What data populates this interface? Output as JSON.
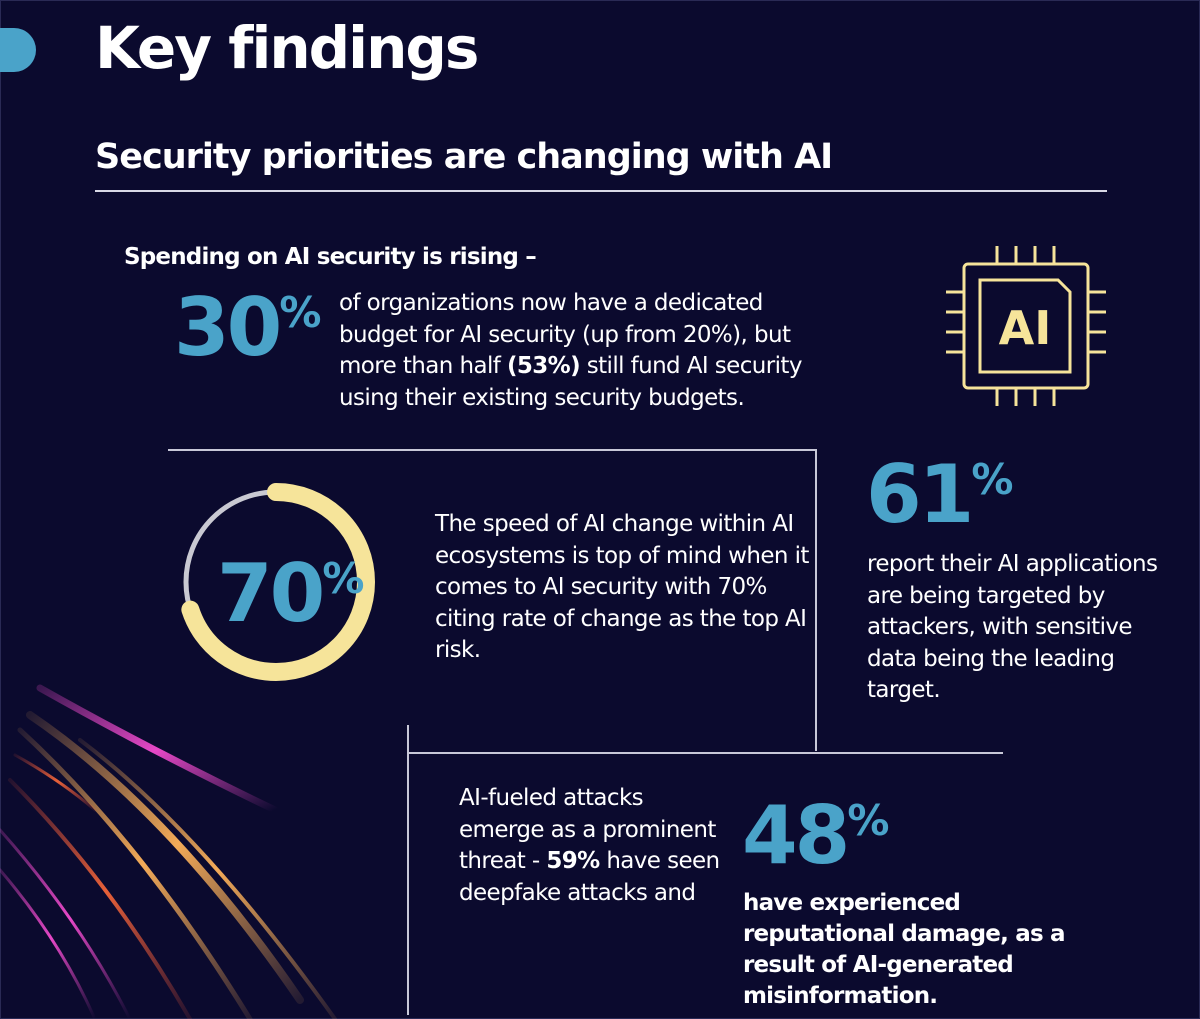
{
  "colors": {
    "background": "#0b0a2e",
    "accent_blue": "#4aa3c9",
    "accent_yellow": "#f6e49a",
    "ring_track": "#c9c9d2"
  },
  "header": {
    "title": "Key findings",
    "subtitle": "Security priorities are changing with AI"
  },
  "spending": {
    "lead": "Spending on AI security is rising –",
    "stat_number": "30",
    "stat_unit": "%",
    "text_part1": "of organizations now have a dedicated budget for AI security (up from 20%), but more than half ",
    "text_bold": "(53%)",
    "text_part2": " still fund AI security using their existing security budgets."
  },
  "ai_chip": {
    "label": "AI",
    "icon": "ai-chip-icon"
  },
  "speed": {
    "stat_number": "70",
    "stat_unit": "%",
    "ring_fraction": 0.7,
    "text": "The speed of AI change within AI ecosystems is top of mind when it comes to AI security with 70% citing rate of change as the top AI risk."
  },
  "targeted": {
    "stat_number": "61",
    "stat_unit": "%",
    "text": "report their AI applications are being targeted by attackers, with sensitive data being the leading target."
  },
  "attacks": {
    "text_part1": "AI-fueled attacks emerge as a prominent threat - ",
    "text_bold": "59%",
    "text_part2": " have seen deepfake attacks and"
  },
  "reputation": {
    "stat_number": "48",
    "stat_unit": "%",
    "text": "have experienced reputational damage, as a result of AI-generated misinformation."
  }
}
